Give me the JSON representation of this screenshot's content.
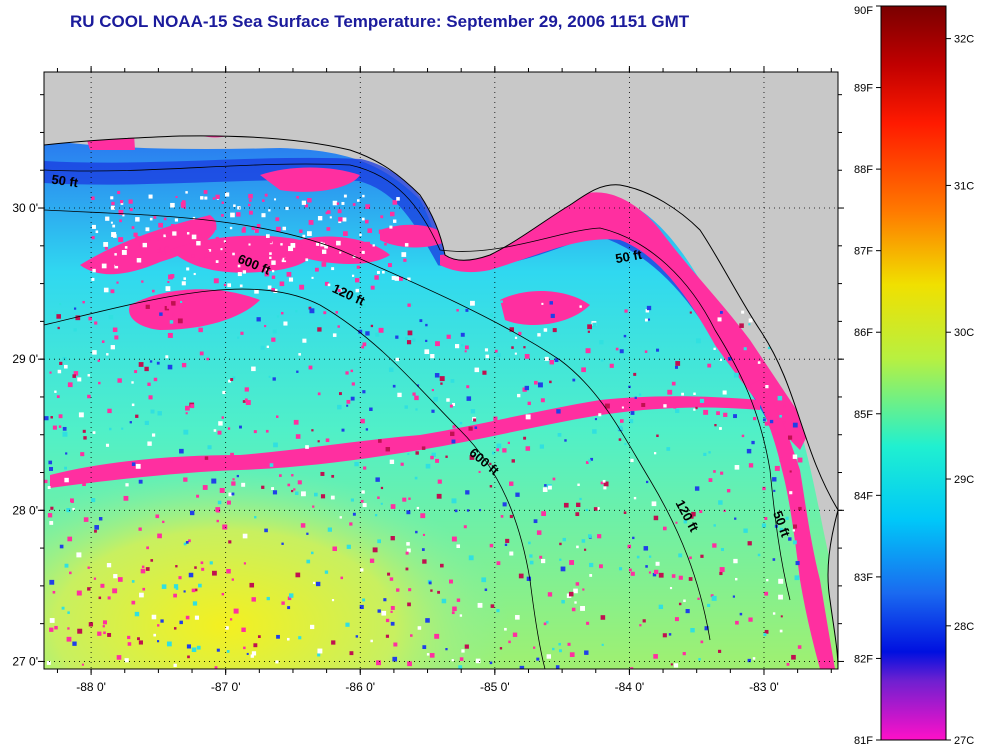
{
  "title": "RU COOL  NOAA-15  Sea Surface Temperature:  September 29, 2006 1151 GMT",
  "map": {
    "lon_range": [
      -88.35,
      -82.45
    ],
    "lat_range": [
      26.95,
      30.9
    ],
    "lon_ticks": [
      {
        "value": -88,
        "label": "-88 0'"
      },
      {
        "value": -87,
        "label": "-87 0'"
      },
      {
        "value": -86,
        "label": "-86 0'"
      },
      {
        "value": -85,
        "label": "-85 0'"
      },
      {
        "value": -84,
        "label": "-84 0'"
      },
      {
        "value": -83,
        "label": "-83 0'"
      }
    ],
    "lat_ticks": [
      {
        "value": 27,
        "label": "27 0'"
      },
      {
        "value": 28,
        "label": "28 0'"
      },
      {
        "value": 29,
        "label": "29 0'"
      },
      {
        "value": 30,
        "label": "30 0'"
      }
    ],
    "contour_labels": [
      {
        "text": "50 ft",
        "lon": -88.2,
        "lat": 30.15,
        "angle": 8
      },
      {
        "text": "600 ft",
        "lon": -86.8,
        "lat": 29.6,
        "angle": 22
      },
      {
        "text": "120 ft",
        "lon": -86.1,
        "lat": 29.4,
        "angle": 25
      },
      {
        "text": "50 ft",
        "lon": -84.0,
        "lat": 29.65,
        "angle": -10
      },
      {
        "text": "600 ft",
        "lon": -85.1,
        "lat": 28.3,
        "angle": 40
      },
      {
        "text": "120 ft",
        "lon": -83.6,
        "lat": 27.95,
        "angle": 62
      },
      {
        "text": "50 ft",
        "lon": -82.9,
        "lat": 27.9,
        "angle": 70
      }
    ],
    "colors": {
      "land": "#c8c8c8",
      "warm_patch": "#ff2fa0",
      "near_shore_cold": "#2040e8"
    }
  },
  "colorbar": {
    "fahrenheit_labels": [
      "90F",
      "89F",
      "88F",
      "87F",
      "86F",
      "85F",
      "84F",
      "83F",
      "82F",
      "81F"
    ],
    "celsius_labels": [
      "32C",
      "31C",
      "30C",
      "29C",
      "28C",
      "27C"
    ],
    "celsius_values": [
      32,
      31,
      30,
      29,
      28,
      27
    ],
    "f_min": 81,
    "f_max": 90
  }
}
